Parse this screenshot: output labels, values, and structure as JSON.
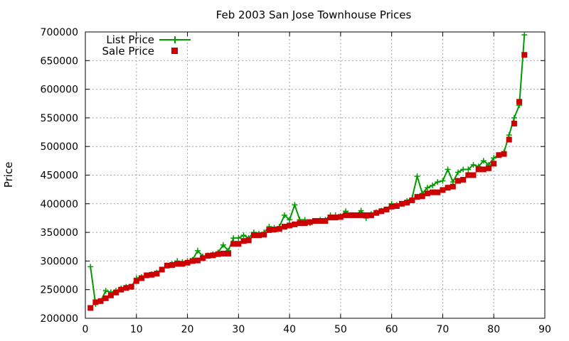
{
  "chart_data": {
    "type": "line",
    "title": "Feb 2003 San Jose Townhouse Prices",
    "xlabel": "",
    "ylabel": "Price",
    "xlim": [
      0,
      90
    ],
    "ylim": [
      200000,
      700000
    ],
    "x_ticks": [
      0,
      10,
      20,
      30,
      40,
      50,
      60,
      70,
      80,
      90
    ],
    "y_ticks": [
      200000,
      250000,
      300000,
      350000,
      400000,
      450000,
      500000,
      550000,
      600000,
      650000,
      700000
    ],
    "grid": true,
    "legend_position": "top-left",
    "colors": {
      "list": "#009900",
      "sale": "#cc0000"
    },
    "series": [
      {
        "name": "List Price",
        "style": "line-plus",
        "values": [
          290000,
          225000,
          230000,
          248000,
          245000,
          248000,
          252000,
          255000,
          255000,
          270000,
          272000,
          275000,
          277000,
          280000,
          285000,
          292000,
          295000,
          300000,
          298000,
          300000,
          302000,
          318000,
          308000,
          310000,
          312000,
          315000,
          328000,
          318000,
          340000,
          340000,
          345000,
          340000,
          350000,
          348000,
          350000,
          360000,
          358000,
          360000,
          380000,
          372000,
          398000,
          372000,
          372000,
          366000,
          370000,
          372000,
          372000,
          380000,
          380000,
          378000,
          387000,
          380000,
          380000,
          388000,
          375000,
          382000,
          385000,
          388000,
          390000,
          400000,
          398000,
          400000,
          405000,
          410000,
          448000,
          418000,
          428000,
          432000,
          438000,
          440000,
          460000,
          438000,
          455000,
          460000,
          460000,
          468000,
          465000,
          475000,
          468000,
          480000,
          485000,
          490000,
          520000,
          550000,
          572000,
          695000
        ]
      },
      {
        "name": "Sale Price",
        "style": "square",
        "values": [
          218000,
          228000,
          230000,
          235000,
          240000,
          245000,
          250000,
          253000,
          255000,
          265000,
          270000,
          275000,
          276000,
          278000,
          285000,
          292000,
          293000,
          295000,
          295000,
          297000,
          300000,
          301000,
          305000,
          309000,
          310000,
          312000,
          313000,
          313000,
          330000,
          330000,
          335000,
          336000,
          345000,
          345000,
          346000,
          354000,
          355000,
          356000,
          360000,
          362000,
          364000,
          366000,
          366000,
          368000,
          370000,
          370000,
          370000,
          376000,
          376000,
          377000,
          380000,
          380000,
          380000,
          380000,
          380000,
          380000,
          384000,
          387000,
          390000,
          395000,
          396000,
          400000,
          402000,
          406000,
          412000,
          413000,
          418000,
          420000,
          420000,
          424000,
          428000,
          430000,
          440000,
          442000,
          450000,
          450000,
          460000,
          460000,
          462000,
          470000,
          485000,
          487000,
          512000,
          540000,
          578000,
          660000
        ]
      }
    ]
  }
}
